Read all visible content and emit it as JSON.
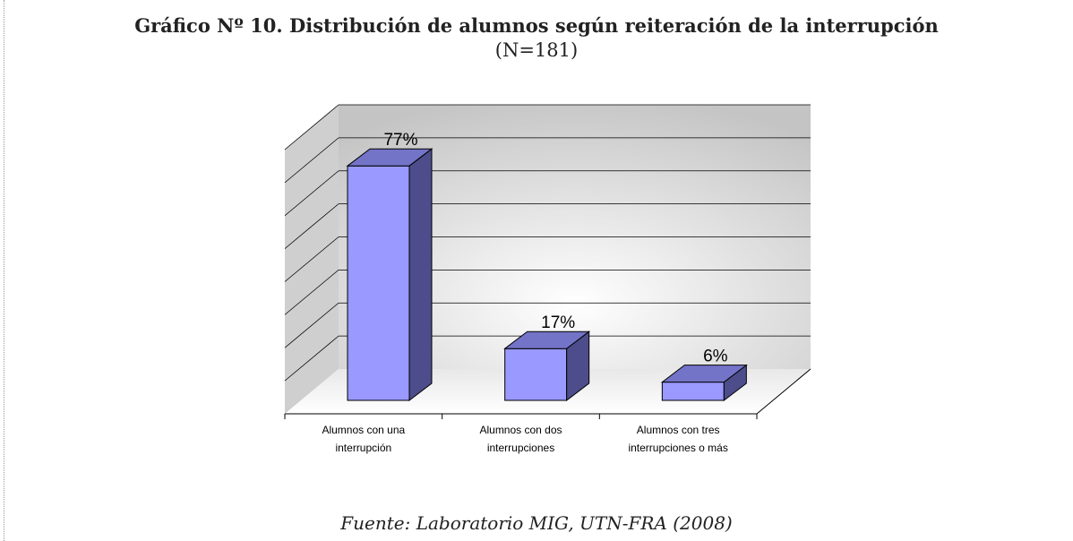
{
  "chart_data": {
    "type": "bar3d",
    "title": "Gráfico Nº 10. Distribución de alumnos según reiteración de la interrupción",
    "subtitle": "(N=181)",
    "source": "Fuente: Laboratorio MIG, UTN-FRA (2008)",
    "categories": [
      "Alumnos con una interrupción",
      "Alumnos con dos interrupciones",
      "Alumnos con tres interrupciones o más"
    ],
    "values": [
      77,
      17,
      6
    ],
    "value_labels": [
      "77%",
      "17%",
      "6%"
    ],
    "color": "#9999ff",
    "ylim": [
      0,
      80
    ],
    "yticks": [
      0,
      10,
      20,
      30,
      40,
      50,
      60,
      70,
      80
    ],
    "grid": true
  }
}
